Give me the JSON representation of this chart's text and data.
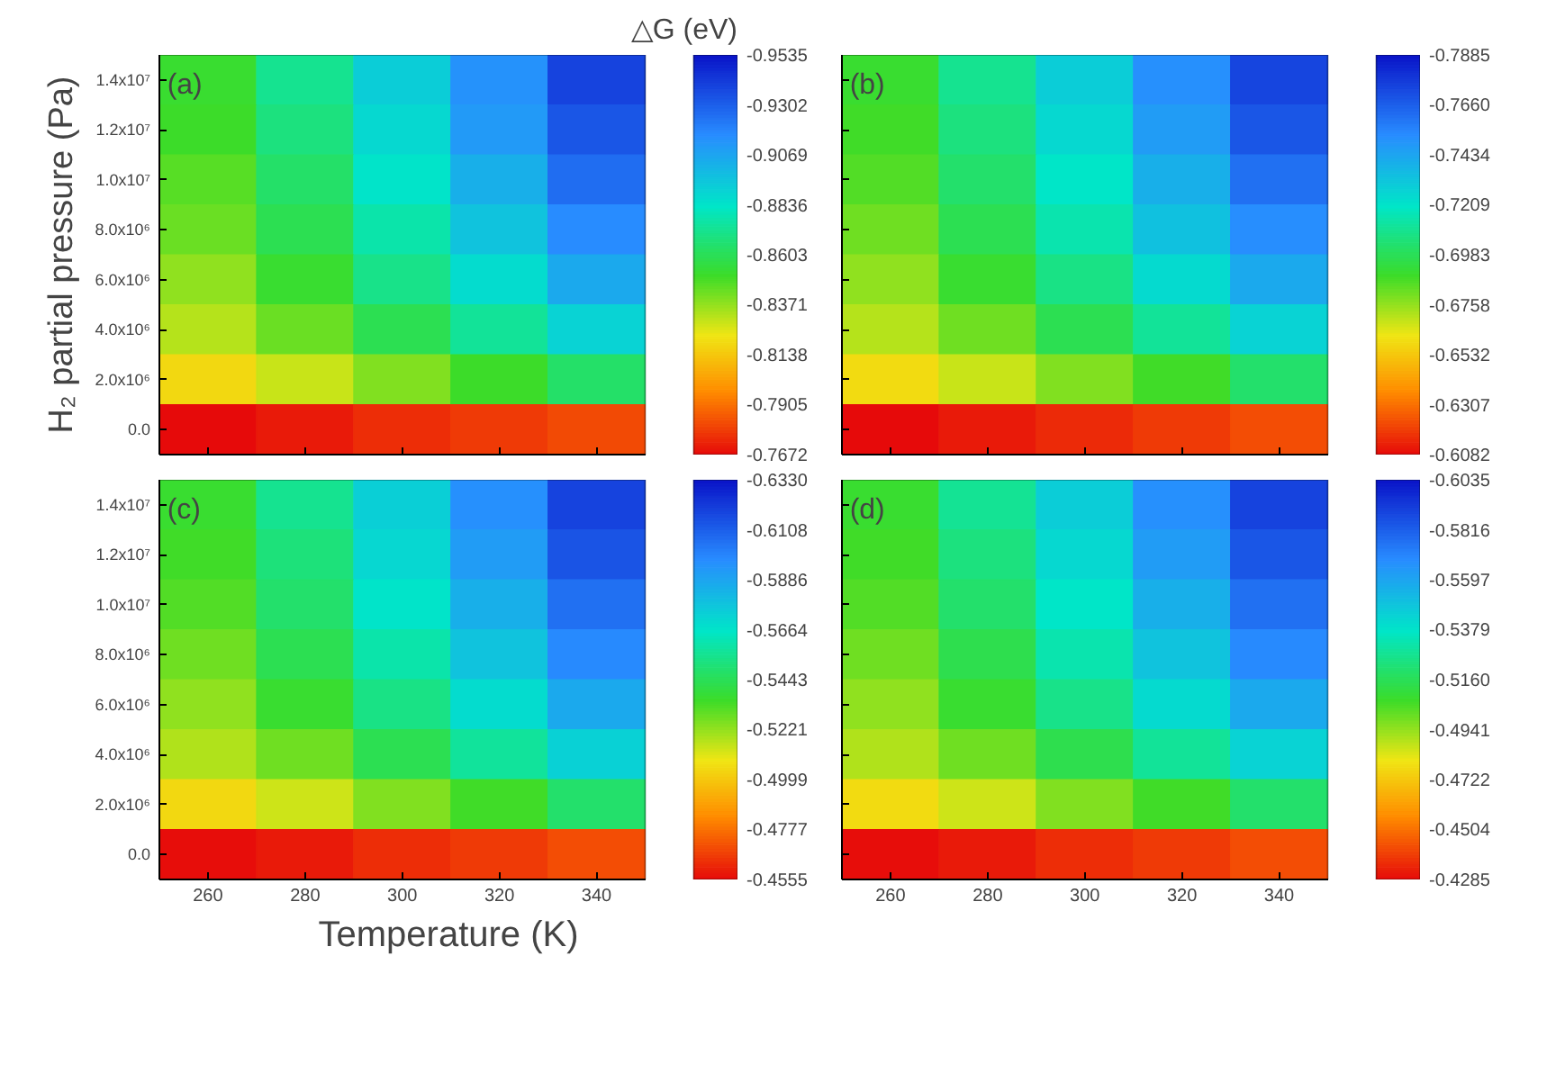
{
  "chart_data": [
    {
      "type": "heatmap",
      "clabel": "△G (eV)",
      "ylabel": "H₂ partial pressure (Pa)",
      "annotations": [
        "(a)"
      ],
      "categories": [
        null,
        null,
        null,
        null,
        null
      ],
      "y_categories": [
        "1.4x10⁷",
        "1.2x10⁷",
        "1.0x10⁷",
        "8.0x10⁶",
        "6.0x10⁶",
        "4.0x10⁶",
        "2.0x10⁶",
        "0.0"
      ],
      "clim": [
        -0.7672,
        -0.9535
      ],
      "cticks": [
        -0.7672,
        -0.7905,
        -0.8138,
        -0.8371,
        -0.8603,
        -0.8836,
        -0.9069,
        -0.9302,
        -0.9535
      ],
      "cells": [
        [
          -0.853,
          -0.872,
          -0.892,
          -0.914,
          -0.939
        ],
        [
          -0.851,
          -0.868,
          -0.888,
          -0.911,
          -0.933
        ],
        [
          -0.847,
          -0.864,
          -0.883,
          -0.903,
          -0.926
        ],
        [
          -0.844,
          -0.859,
          -0.877,
          -0.896,
          -0.916
        ],
        [
          -0.838,
          -0.853,
          -0.87,
          -0.886,
          -0.905
        ],
        [
          -0.832,
          -0.844,
          -0.859,
          -0.873,
          -0.89
        ],
        [
          -0.819,
          -0.829,
          -0.84,
          -0.851,
          -0.864
        ],
        [
          -0.767,
          -0.771,
          -0.775,
          -0.778,
          -0.782
        ]
      ]
    },
    {
      "type": "heatmap",
      "annotations": [
        "(b)"
      ],
      "categories": [
        null,
        null,
        null,
        null,
        null
      ],
      "y_categories": [
        null,
        null,
        null,
        null,
        null,
        null,
        null,
        null
      ],
      "clim": [
        -0.6082,
        -0.7885
      ],
      "cticks": [
        -0.6082,
        -0.6307,
        -0.6532,
        -0.6758,
        -0.6983,
        -0.7209,
        -0.7434,
        {
          "value": -0.766,
          "label": "-0.7660"
        },
        -0.7885
      ],
      "cells": [
        [
          -0.691,
          -0.709,
          -0.729,
          -0.751,
          -0.774
        ],
        [
          -0.689,
          -0.706,
          -0.725,
          -0.747,
          -0.769
        ],
        [
          -0.686,
          -0.702,
          -0.72,
          -0.74,
          -0.761
        ],
        [
          -0.682,
          -0.697,
          -0.715,
          -0.733,
          -0.752
        ],
        [
          -0.677,
          -0.691,
          -0.707,
          -0.724,
          -0.742
        ],
        [
          -0.671,
          -0.682,
          -0.697,
          -0.711,
          -0.727
        ],
        [
          -0.659,
          -0.668,
          -0.679,
          -0.689,
          -0.702
        ],
        [
          -0.608,
          -0.612,
          -0.615,
          -0.619,
          -0.623
        ]
      ]
    },
    {
      "type": "heatmap",
      "annotations": [
        "(c)"
      ],
      "xlabel": "Temperature (K)",
      "categories": [
        "260",
        "280",
        "300",
        "320",
        "340"
      ],
      "y_categories": [
        "1.4x10⁷",
        "1.2x10⁷",
        "1.0x10⁷",
        "8.0x10⁶",
        "6.0x10⁶",
        "4.0x10⁶",
        "2.0x10⁶",
        "0.0"
      ],
      "clim": [
        -0.4555,
        -0.633
      ],
      "cticks": [
        -0.4555,
        -0.4777,
        -0.4999,
        -0.5221,
        -0.5443,
        -0.5664,
        -0.5886,
        -0.6108,
        {
          "value": -0.633,
          "label": "-0.6330"
        }
      ],
      "cells": [
        [
          -0.537,
          -0.555,
          -0.574,
          -0.596,
          -0.619
        ],
        [
          -0.535,
          -0.551,
          -0.571,
          -0.592,
          -0.614
        ],
        [
          -0.532,
          -0.548,
          -0.566,
          -0.585,
          -0.606
        ],
        [
          -0.528,
          -0.543,
          -0.56,
          -0.578,
          -0.598
        ],
        [
          -0.523,
          -0.537,
          -0.553,
          -0.569,
          -0.587
        ],
        [
          -0.518,
          -0.528,
          -0.543,
          -0.557,
          -0.573
        ],
        [
          -0.505,
          -0.514,
          -0.525,
          -0.535,
          -0.548
        ],
        [
          -0.456,
          -0.459,
          -0.463,
          -0.466,
          -0.47
        ]
      ]
    },
    {
      "type": "heatmap",
      "annotations": [
        "(d)"
      ],
      "categories": [
        "260",
        "280",
        "300",
        "320",
        "340"
      ],
      "y_categories": [
        null,
        null,
        null,
        null,
        null,
        null,
        null,
        null
      ],
      "clim": [
        -0.4285,
        -0.6035
      ],
      "cticks": [
        -0.4285,
        -0.4504,
        -0.4722,
        -0.4941,
        {
          "value": -0.516,
          "label": "-0.5160"
        },
        -0.5379,
        -0.5597,
        -0.5816,
        -0.6035
      ],
      "cells": [
        [
          -0.509,
          -0.527,
          -0.546,
          -0.567,
          -0.59
        ],
        [
          -0.507,
          -0.523,
          -0.542,
          -0.563,
          -0.584
        ],
        [
          -0.504,
          -0.52,
          -0.537,
          -0.556,
          -0.577
        ],
        [
          -0.5,
          -0.514,
          -0.532,
          -0.549,
          -0.569
        ],
        [
          -0.495,
          -0.509,
          -0.525,
          -0.541,
          -0.558
        ],
        [
          -0.49,
          -0.5,
          -0.514,
          -0.528,
          -0.544
        ],
        [
          -0.478,
          -0.486,
          -0.497,
          -0.507,
          -0.52
        ],
        [
          -0.429,
          -0.432,
          -0.436,
          -0.439,
          -0.443
        ]
      ]
    }
  ]
}
